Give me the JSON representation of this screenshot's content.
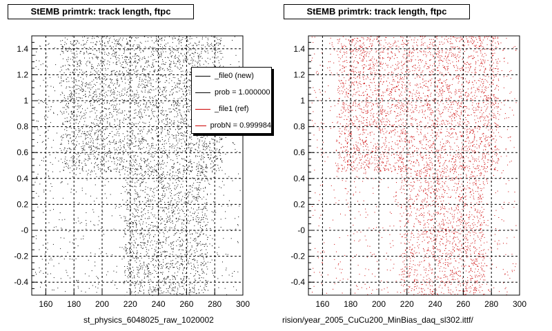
{
  "chart_data": [
    {
      "type": "scatter",
      "title": "StEMB primtrk: track length, ftpc",
      "xlabel": "st_physics_6048025_raw_1020002",
      "xlim": [
        150,
        300
      ],
      "ylim": [
        -0.5,
        1.5
      ],
      "xticks": [
        "160",
        "180",
        "200",
        "220",
        "240",
        "260",
        "280",
        "300"
      ],
      "yticks": [
        "-0.4",
        "-0.2",
        "-0",
        "0.2",
        "0.4",
        "0.6",
        "0.8",
        "1",
        "1.2",
        "1.4"
      ],
      "grid": true,
      "marker_color": "#000000",
      "legend_placement": "top-right",
      "legend": [
        {
          "label": "_file0 (new)",
          "color": "#000000"
        },
        {
          "label": "prob = 1.000000",
          "color": "#000000"
        },
        {
          "label": "_file1 (ref)",
          "color": "#cc0000"
        },
        {
          "label": "probN = 0.999984",
          "color": "#cc0000"
        }
      ]
    },
    {
      "type": "scatter",
      "title": "StEMB primtrk: track length, ftpc",
      "xlabel": "rision/year_2005_CuCu200_MinBias_daq_sl302.ittf/",
      "xlim": [
        150,
        300
      ],
      "ylim": [
        -0.5,
        1.5
      ],
      "xticks": [
        "160",
        "180",
        "200",
        "220",
        "240",
        "260",
        "280",
        "300"
      ],
      "yticks": [
        "-0.4",
        "-0.2",
        "-0",
        "0.2",
        "0.4",
        "0.6",
        "0.8",
        "1",
        "1.2",
        "1.4"
      ],
      "grid": true,
      "marker_color": "#cc0000"
    }
  ]
}
